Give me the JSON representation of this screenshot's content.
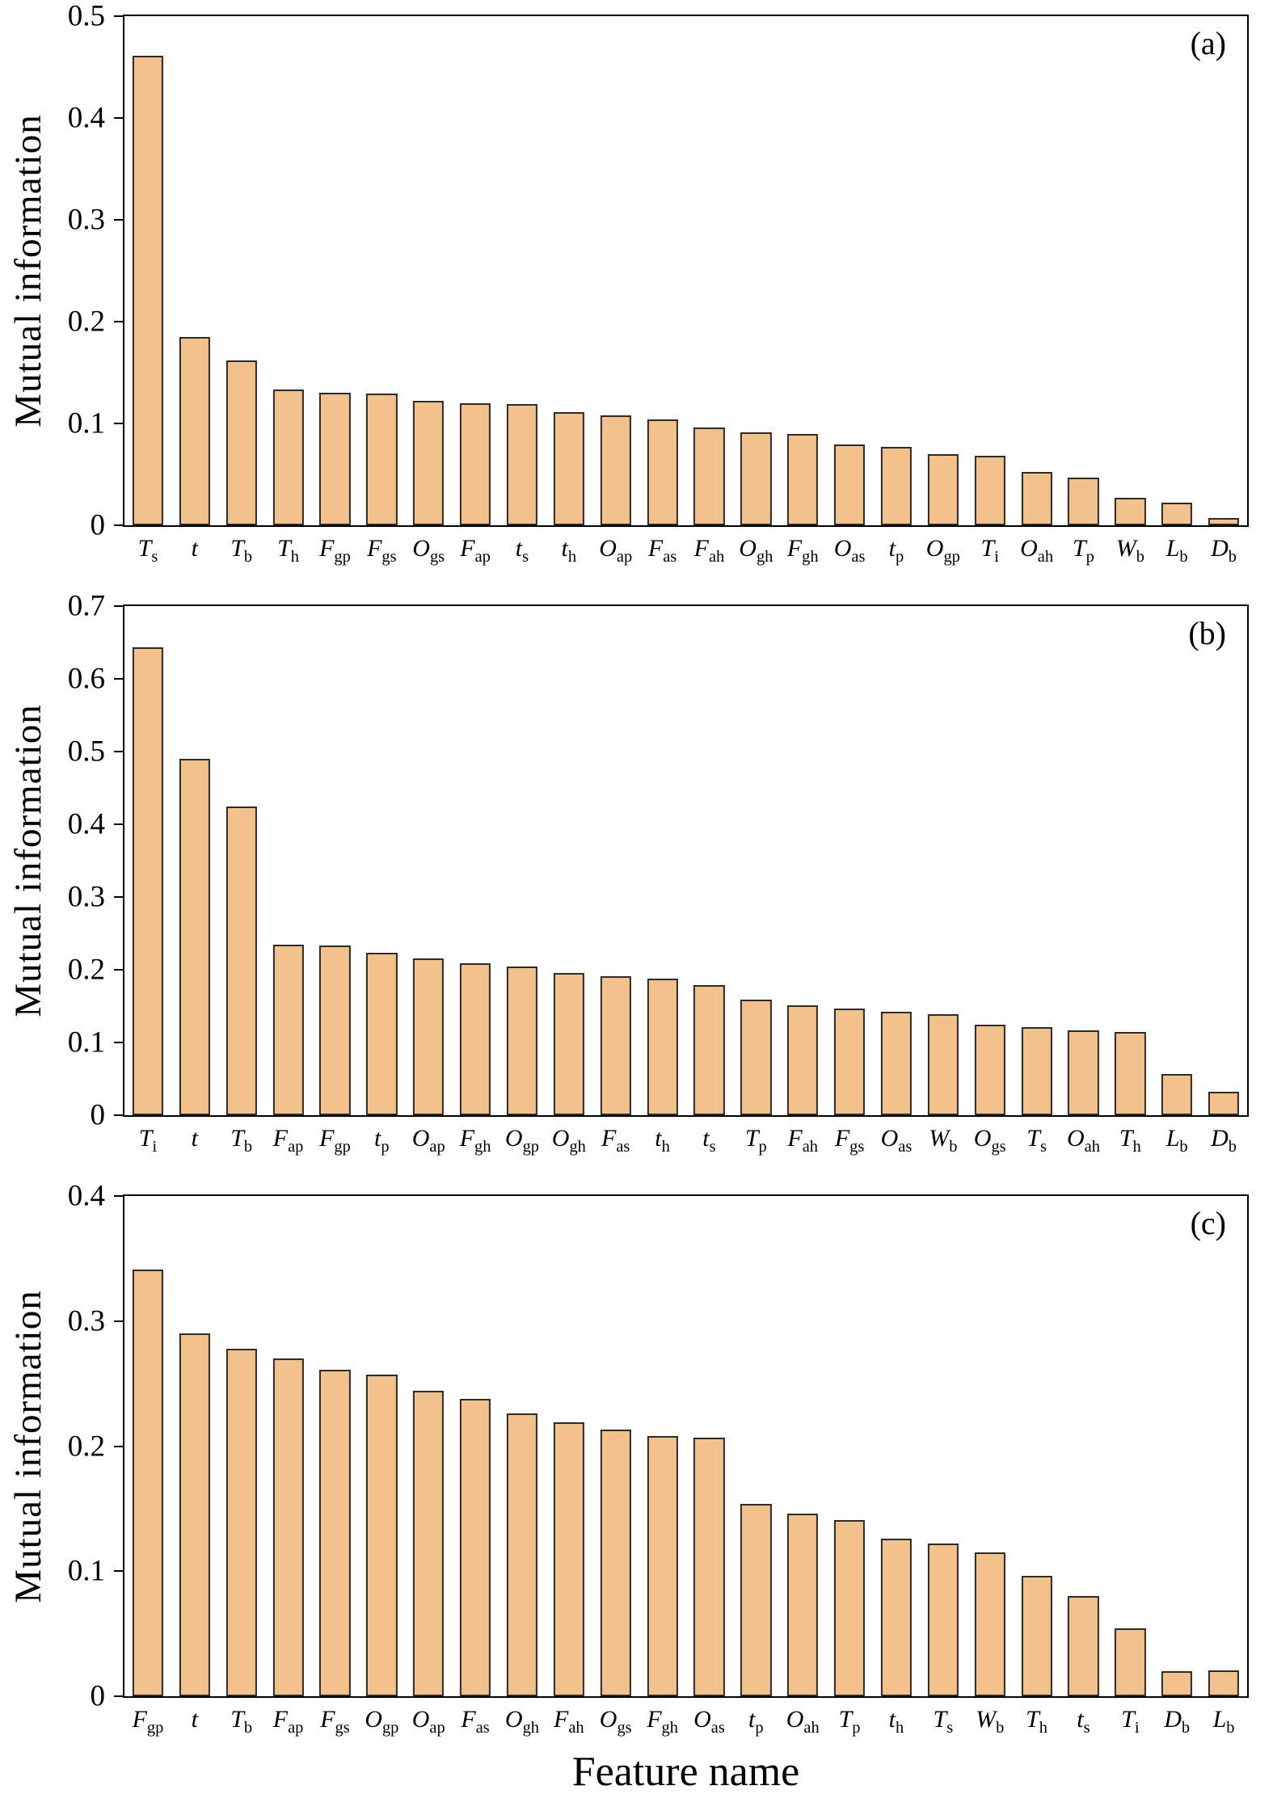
{
  "styles": {
    "bar_fill": "#F3C28C",
    "bar_edge": "#2b2b2b",
    "axis_color": "#000000"
  },
  "chart_data": [
    {
      "type": "bar",
      "panel_label": "(a)",
      "ylabel": "Mutual information",
      "xlabel": "",
      "ylim": [
        0,
        0.5
      ],
      "yticks": [
        0,
        0.1,
        0.2,
        0.3,
        0.4,
        0.5
      ],
      "grid": false,
      "legend": "none",
      "categories": [
        "T_s",
        "t",
        "T_b",
        "T_h",
        "F_gp",
        "F_gs",
        "O_gs",
        "F_ap",
        "t_s",
        "t_h",
        "O_ap",
        "F_as",
        "F_ah",
        "O_gh",
        "F_gh",
        "O_as",
        "t_p",
        "O_gp",
        "T_i",
        "O_ah",
        "T_p",
        "W_b",
        "L_b",
        "D_b"
      ],
      "values": [
        0.461,
        0.185,
        0.162,
        0.133,
        0.13,
        0.129,
        0.122,
        0.12,
        0.119,
        0.111,
        0.108,
        0.104,
        0.096,
        0.091,
        0.09,
        0.079,
        0.077,
        0.07,
        0.068,
        0.052,
        0.047,
        0.027,
        0.022,
        0.007
      ]
    },
    {
      "type": "bar",
      "panel_label": "(b)",
      "ylabel": "Mutual information",
      "xlabel": "",
      "ylim": [
        0,
        0.7
      ],
      "yticks": [
        0,
        0.1,
        0.2,
        0.3,
        0.4,
        0.5,
        0.6,
        0.7
      ],
      "grid": false,
      "legend": "none",
      "categories": [
        "T_i",
        "t",
        "T_b",
        "F_ap",
        "F_gp",
        "t_p",
        "O_ap",
        "F_gh",
        "O_gp",
        "O_gh",
        "F_as",
        "t_h",
        "t_s",
        "T_p",
        "F_ah",
        "F_gs",
        "O_as",
        "W_b",
        "O_gs",
        "T_s",
        "O_ah",
        "T_h",
        "L_b",
        "D_b"
      ],
      "values": [
        0.643,
        0.49,
        0.425,
        0.235,
        0.233,
        0.223,
        0.216,
        0.209,
        0.205,
        0.196,
        0.191,
        0.188,
        0.179,
        0.159,
        0.151,
        0.147,
        0.142,
        0.139,
        0.125,
        0.121,
        0.117,
        0.114,
        0.057,
        0.032
      ]
    },
    {
      "type": "bar",
      "panel_label": "(c)",
      "ylabel": "Mutual information",
      "xlabel": "Feature name",
      "ylim": [
        0,
        0.4
      ],
      "yticks": [
        0,
        0.1,
        0.2,
        0.3,
        0.4
      ],
      "grid": false,
      "legend": "none",
      "categories": [
        "F_gp",
        "t",
        "T_b",
        "F_ap",
        "F_gs",
        "O_gp",
        "O_ap",
        "F_as",
        "O_gh",
        "F_ah",
        "O_gs",
        "F_gh",
        "O_as",
        "t_p",
        "O_ah",
        "T_p",
        "t_h",
        "T_s",
        "W_b",
        "T_h",
        "t_s",
        "T_i",
        "D_b",
        "L_b"
      ],
      "values": [
        0.341,
        0.29,
        0.278,
        0.27,
        0.261,
        0.257,
        0.244,
        0.238,
        0.226,
        0.219,
        0.213,
        0.208,
        0.207,
        0.154,
        0.146,
        0.141,
        0.126,
        0.122,
        0.115,
        0.096,
        0.08,
        0.054,
        0.02,
        0.021
      ]
    }
  ]
}
